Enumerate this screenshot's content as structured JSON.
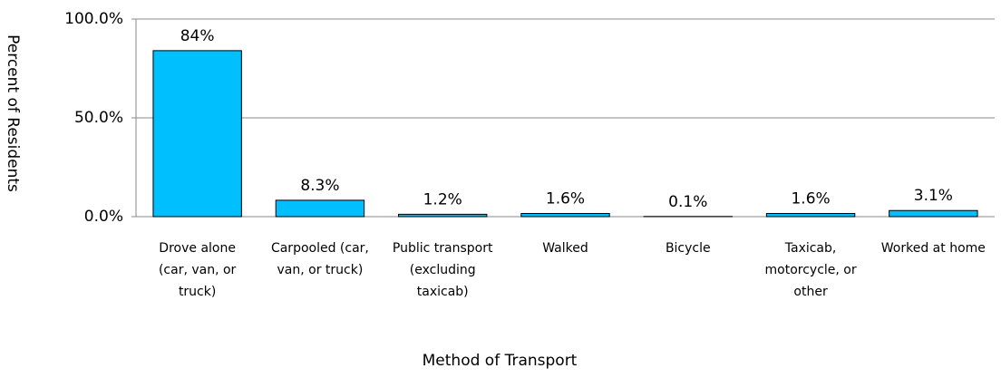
{
  "chart_data": {
    "type": "bar",
    "y_label": "Percent of Residents",
    "x_label": "Method of Transport",
    "categories": [
      "Drove alone (car, van, or truck)",
      "Carpooled (car, van, or truck)",
      "Public transport (excluding taxicab)",
      "Walked",
      "Bicycle",
      "Taxicab, motorcycle, or other",
      "Worked at home"
    ],
    "values": [
      84,
      8.3,
      1.2,
      1.6,
      0.1,
      1.6,
      3.1
    ],
    "value_labels": [
      "84%",
      "8.3%",
      "1.2%",
      "1.6%",
      "0.1%",
      "1.6%",
      "3.1%"
    ],
    "color": "#00bfff",
    "ylim": [
      0,
      100
    ],
    "yticks": [
      {
        "value": 0,
        "label": "0.0%"
      },
      {
        "value": 50,
        "label": "50.0%"
      },
      {
        "value": 100,
        "label": "100.0%"
      }
    ],
    "grid": true
  }
}
